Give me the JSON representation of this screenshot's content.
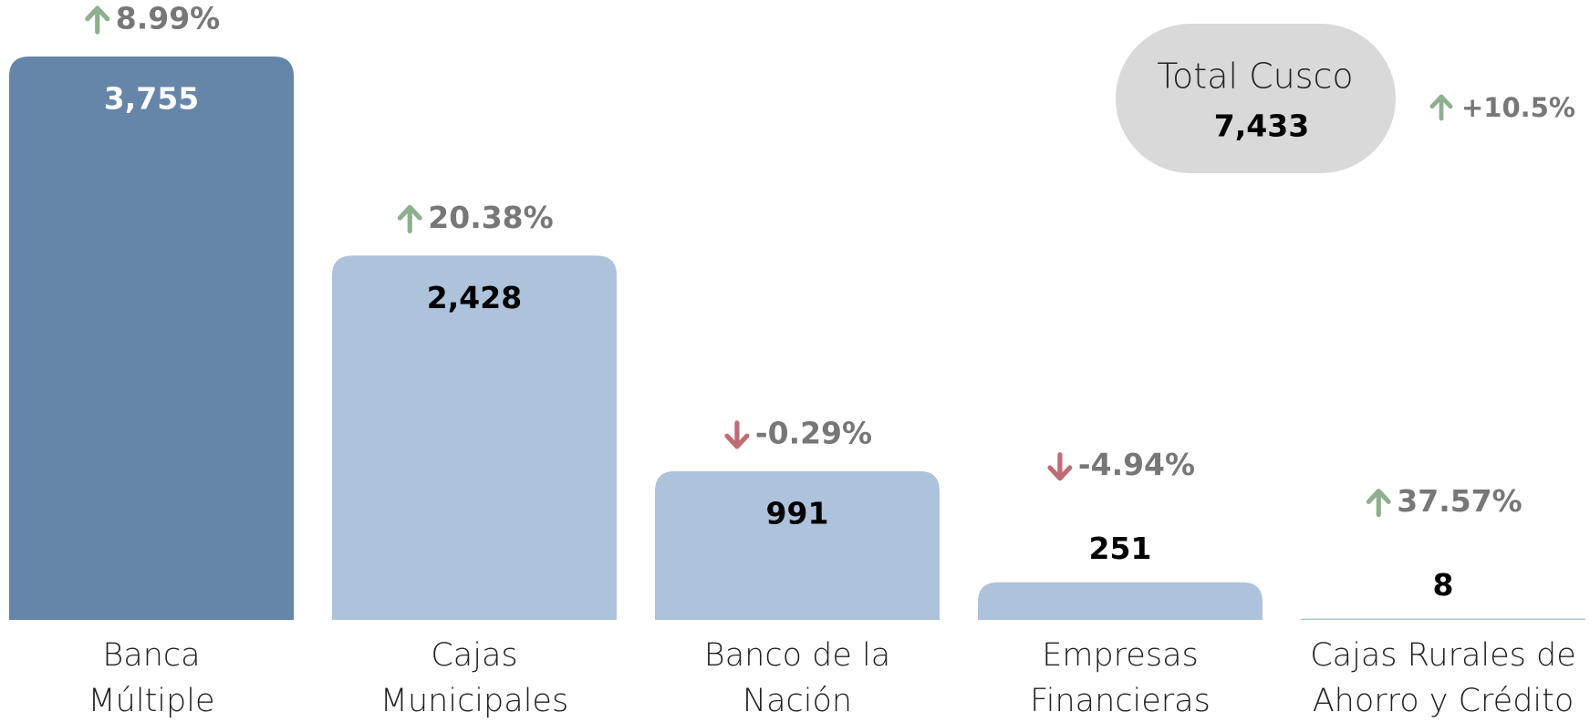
{
  "chart_data": {
    "type": "bar",
    "categories": [
      [
        "Banca",
        "Múltiple"
      ],
      [
        "Cajas",
        "Municipales"
      ],
      [
        "Banco de la",
        "Nación"
      ],
      [
        "Empresas",
        "Financieras"
      ],
      [
        "Cajas Rurales de",
        "Ahorro y Crédito"
      ]
    ],
    "values": [
      3755,
      2428,
      991,
      251,
      8
    ],
    "value_labels": [
      "3,755",
      "2,428",
      "991",
      "251",
      "8"
    ],
    "colors": [
      "#6586a8",
      "#adc2db",
      "#adc2db",
      "#adc2db",
      "#adc2db"
    ],
    "changes": [
      8.99,
      20.38,
      -0.29,
      -4.94,
      37.57
    ],
    "change_labels": [
      "8.99%",
      "20.38%",
      "-0.29%",
      "-4.94%",
      "37.57%"
    ],
    "total": {
      "label": "Total Cusco",
      "value": 7433,
      "value_label": "7,433",
      "change": 10.5,
      "change_label": "+10.5%"
    }
  }
}
